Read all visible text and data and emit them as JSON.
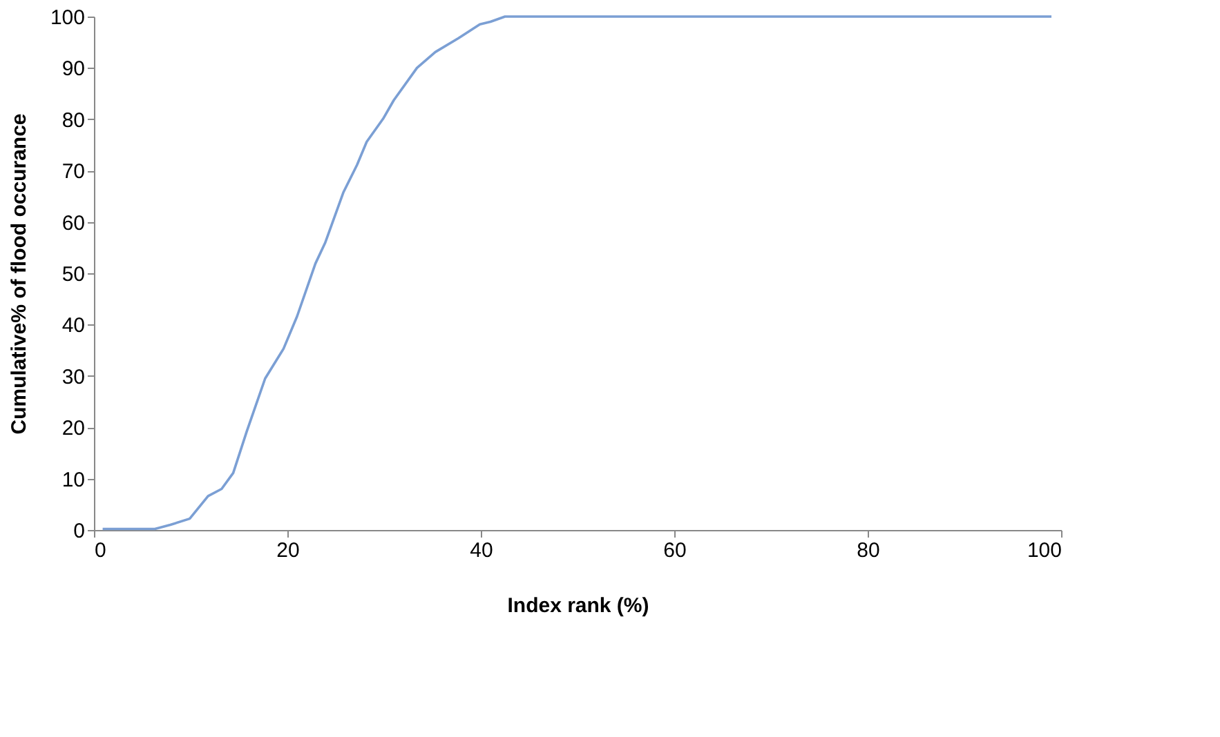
{
  "chart_data": {
    "type": "line",
    "xlabel": "Index rank (%)",
    "ylabel": "Cumulative% of flood occurance",
    "x": [
      0.9,
      6.3,
      7.9,
      9.9,
      11.8,
      13.2,
      14.4,
      15.8,
      17.7,
      19.6,
      21.0,
      22.9,
      23.9,
      25.8,
      27.2,
      28.2,
      29.9,
      31.0,
      33.4,
      35.3,
      37.7,
      39.9,
      41.0,
      42.5,
      99
    ],
    "series": [
      {
        "color": "#7b9fd4",
        "values": [
          0.2,
          0.2,
          1.0,
          2.2,
          6.6,
          8.0,
          11.1,
          19.2,
          29.5,
          35.3,
          41.6,
          51.9,
          55.9,
          65.8,
          71.1,
          75.6,
          80.1,
          83.7,
          90,
          93.1,
          95.8,
          98.5,
          99,
          100,
          100
        ]
      }
    ],
    "xlim": [
      0,
      100
    ],
    "xticks": [
      0,
      20,
      40,
      60,
      80,
      100
    ],
    "ylim": [
      0,
      100
    ],
    "yticks": [
      0,
      10,
      20,
      30,
      40,
      50,
      60,
      70,
      80,
      90,
      100
    ],
    "grid": false,
    "legend": false,
    "marker": "none",
    "line_style": "solid"
  }
}
